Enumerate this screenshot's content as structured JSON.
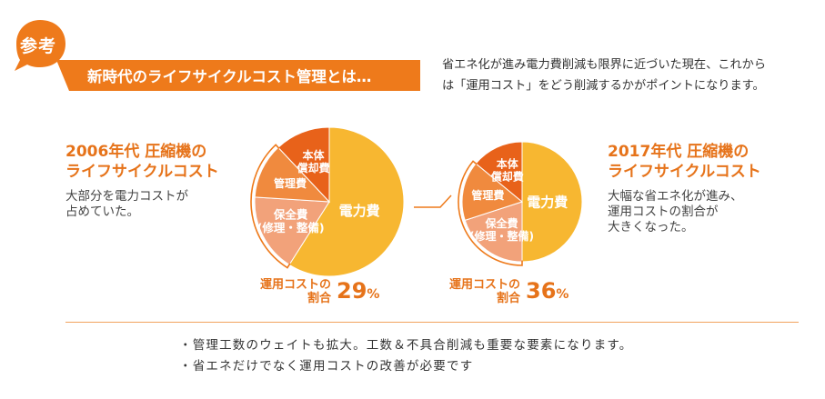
{
  "badge": {
    "label": "参考"
  },
  "banner": {
    "title": "新時代のライフサイクルコスト管理とは…"
  },
  "intro": {
    "line1": "省エネ化が進み電力費削減も限界に近づいた現在、これから",
    "line2": "は「運用コスト」をどう削減するかがポイントになります。"
  },
  "left": {
    "title_line1": "2006年代 圧縮機の",
    "title_line2": "ライフサイクルコスト",
    "desc_line1": "大部分を電力コストが",
    "desc_line2": "占めていた。",
    "ratio_label_line1": "運用コストの",
    "ratio_label_line2": "割合",
    "ratio_value": "29",
    "ratio_unit": "%"
  },
  "right": {
    "title_line1": "2017年代 圧縮機の",
    "title_line2": "ライフサイクルコスト",
    "desc_line1": "大幅な省エネ化が進み、",
    "desc_line2": "運用コストの割合が",
    "desc_line3": "大きくなった。",
    "ratio_label_line1": "運用コストの",
    "ratio_label_line2": "割合",
    "ratio_value": "36",
    "ratio_unit": "%"
  },
  "bullets": [
    "・管理工数のウェイトも拡大。工数＆不具合削減も重要な要素になります。",
    "・省エネだけでなく運用コストの改善が必要です"
  ],
  "colors": {
    "accent": "#ee7a1b",
    "power": "#f7b731",
    "depreciation": "#e8621a",
    "management": "#f08a3e",
    "maintenance": "#f2a27a"
  },
  "chart_data": [
    {
      "type": "pie",
      "title": "2006年代 圧縮機の ライフサイクルコスト",
      "slices": [
        {
          "label": "電力費",
          "value": 59,
          "color": "#f7b731"
        },
        {
          "label": "保全費(修理・整備)",
          "value": 17,
          "color": "#f2a27a"
        },
        {
          "label": "管理費",
          "value": 12,
          "color": "#f08a3e"
        },
        {
          "label": "本体償却費",
          "value": 12,
          "color": "#e8621a"
        }
      ],
      "operating_cost_share_percent": 29
    },
    {
      "type": "pie",
      "title": "2017年代 圧縮機の ライフサイクルコスト",
      "slices": [
        {
          "label": "電力費",
          "value": 50,
          "color": "#f7b731"
        },
        {
          "label": "保全費(修理・整備)",
          "value": 20,
          "color": "#f2a27a"
        },
        {
          "label": "管理費",
          "value": 16,
          "color": "#f08a3e"
        },
        {
          "label": "本体償却費",
          "value": 14,
          "color": "#e8621a"
        }
      ],
      "operating_cost_share_percent": 36
    }
  ]
}
